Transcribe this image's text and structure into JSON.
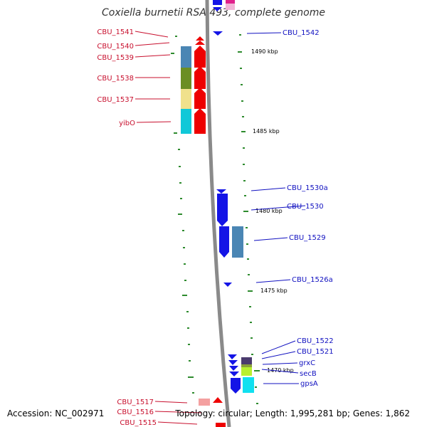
{
  "title": "Coxiella burnetii RSA 493, complete genome",
  "footer": {
    "accession": "Accession: NC_002971",
    "summary": "Topology: circular; Length: 1,995,281 bp; Genes: 1,862"
  },
  "colors": {
    "forward_gene": "#ee0000",
    "reverse_gene": "#1414e6",
    "backbone": "#8a8a8a",
    "tick": "#2e8b2e",
    "label_left": "#c8102e",
    "label_right": "#1010c0"
  },
  "kbp_labels": [
    "1490 kbp",
    "1485 kbp",
    "1480 kbp",
    "1475 kbp",
    "1470 kbp"
  ],
  "left_labels": [
    "CBU_1541",
    "CBU_1540",
    "CBU_1539",
    "CBU_1538",
    "CBU_1537",
    "yibO",
    "CBU_1517",
    "CBU_1516",
    "CBU_1515"
  ],
  "right_labels": [
    "CBU_1542",
    "CBU_1530a",
    "CBU_1530",
    "CBU_1529",
    "CBU_1526a",
    "CBU_1522",
    "CBU_1521",
    "grxC",
    "secB",
    "gpsA"
  ]
}
